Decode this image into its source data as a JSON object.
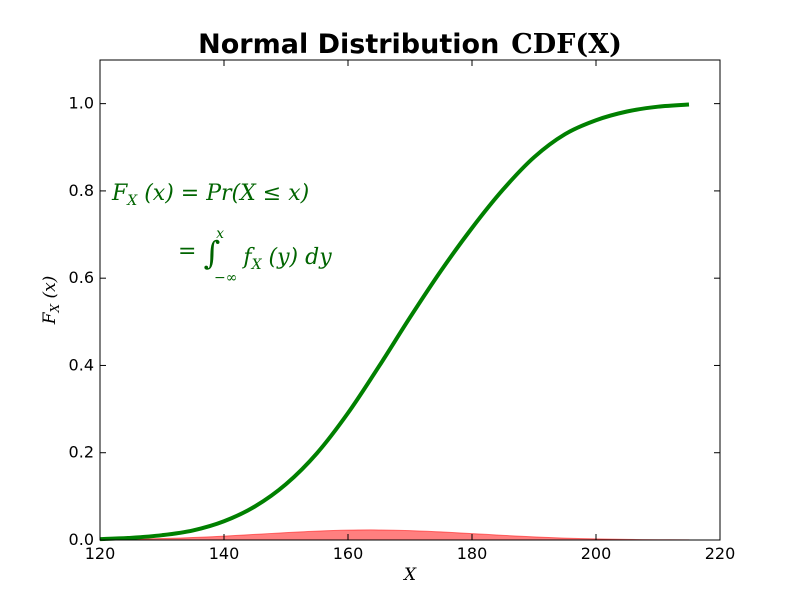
{
  "chart_data": {
    "type": "line",
    "title_bold": "Normal Distribution",
    "title_math": "CDF(X)",
    "xlabel": "X",
    "ylabel": "F_X (x)",
    "xlim": [
      120,
      220
    ],
    "ylim": [
      0,
      1.1
    ],
    "xticks": [
      120,
      140,
      160,
      180,
      200,
      220
    ],
    "yticks": [
      0.0,
      0.2,
      0.4,
      0.6,
      0.8,
      1.0
    ],
    "ytick_labels": [
      "0.0",
      "0.2",
      "0.4",
      "0.6",
      "0.8",
      "1.0"
    ],
    "grid": false,
    "series": [
      {
        "kind": "line",
        "color": "#008000",
        "x": [
          120,
          125,
          130,
          135,
          140,
          145,
          150,
          155,
          160,
          165,
          170,
          175,
          180,
          185,
          190,
          195,
          200,
          205,
          210,
          215
        ],
        "y": [
          0.002,
          0.005,
          0.011,
          0.022,
          0.043,
          0.077,
          0.128,
          0.199,
          0.291,
          0.398,
          0.51,
          0.617,
          0.715,
          0.803,
          0.877,
          0.93,
          0.962,
          0.982,
          0.993,
          0.998
        ]
      },
      {
        "kind": "area",
        "color": "#ff0000",
        "x": [
          120,
          125,
          130,
          135,
          140,
          145,
          150,
          155,
          160,
          165,
          170,
          175,
          180,
          185,
          190,
          195,
          200,
          205,
          210,
          215
        ],
        "y": [
          0.0008,
          0.0017,
          0.0033,
          0.0057,
          0.0089,
          0.0128,
          0.0169,
          0.0204,
          0.0226,
          0.023,
          0.0216,
          0.0186,
          0.0147,
          0.0107,
          0.0071,
          0.0044,
          0.0025,
          0.0013,
          0.0006,
          0.0003
        ]
      }
    ],
    "annotation": {
      "line1": "F_X (x) = Pr(X ≤ x)",
      "line2": "= ∫_{-∞}^{x} f_X (y) dy"
    }
  }
}
